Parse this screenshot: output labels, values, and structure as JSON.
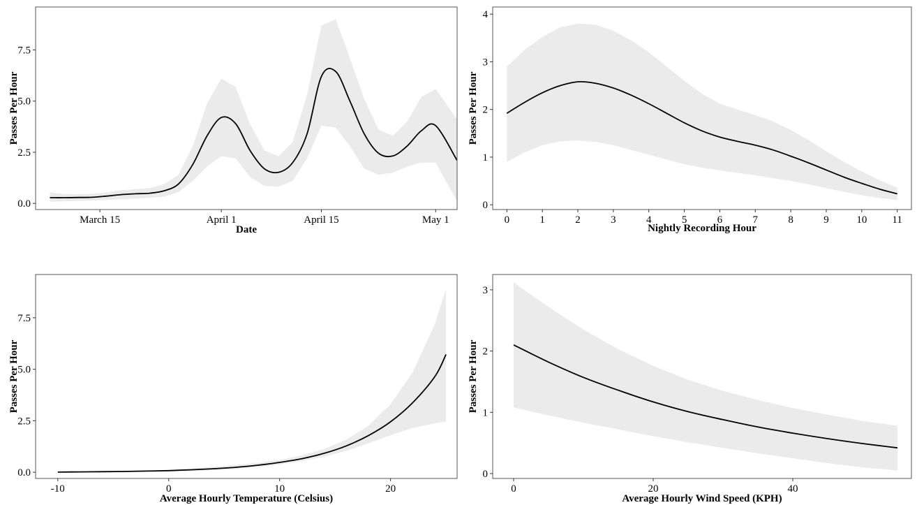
{
  "chart_data": [
    {
      "type": "line",
      "title": "",
      "xlabel": "Date",
      "ylabel": "Passes Per Hour",
      "x_axis_type": "date",
      "xlim": [
        "2017-03-06",
        "2017-05-04"
      ],
      "ylim": [
        -0.3,
        9.6
      ],
      "xticks": [
        {
          "value": "2017-03-15",
          "label": "March 15"
        },
        {
          "value": "2017-04-01",
          "label": "April 1"
        },
        {
          "value": "2017-04-15",
          "label": "April 15"
        },
        {
          "value": "2017-05-01",
          "label": "May 1"
        }
      ],
      "yticks": [
        {
          "value": 0,
          "label": "0.0"
        },
        {
          "value": 2.5,
          "label": "2.5"
        },
        {
          "value": 5,
          "label": "5.0"
        },
        {
          "value": 7.5,
          "label": "7.5"
        }
      ],
      "grid": false,
      "series": [
        {
          "x": [
            "2017-03-08",
            "2017-03-10",
            "2017-03-12",
            "2017-03-14",
            "2017-03-16",
            "2017-03-18",
            "2017-03-20",
            "2017-03-22",
            "2017-03-24",
            "2017-03-26",
            "2017-03-28",
            "2017-03-30",
            "2017-04-01",
            "2017-04-03",
            "2017-04-05",
            "2017-04-07",
            "2017-04-09",
            "2017-04-11",
            "2017-04-13",
            "2017-04-15",
            "2017-04-17",
            "2017-04-19",
            "2017-04-21",
            "2017-04-23",
            "2017-04-25",
            "2017-04-27",
            "2017-04-29",
            "2017-05-01",
            "2017-05-04"
          ],
          "y": [
            0.28,
            0.28,
            0.29,
            0.3,
            0.36,
            0.43,
            0.47,
            0.5,
            0.62,
            0.95,
            1.9,
            3.3,
            4.2,
            3.9,
            2.6,
            1.7,
            1.52,
            2.0,
            3.4,
            6.2,
            6.45,
            5.0,
            3.4,
            2.45,
            2.32,
            2.8,
            3.55,
            3.8,
            2.1
          ],
          "lower": [
            0.08,
            0.1,
            0.12,
            0.14,
            0.17,
            0.2,
            0.24,
            0.27,
            0.33,
            0.55,
            1.1,
            1.8,
            2.3,
            2.2,
            1.3,
            0.85,
            0.82,
            1.1,
            2.2,
            3.8,
            3.7,
            2.8,
            1.7,
            1.4,
            1.5,
            1.8,
            2.0,
            2.0,
            0.1
          ],
          "upper": [
            0.55,
            0.46,
            0.45,
            0.47,
            0.55,
            0.65,
            0.7,
            0.75,
            0.95,
            1.4,
            2.8,
            4.9,
            6.1,
            5.7,
            3.9,
            2.6,
            2.3,
            3.0,
            5.3,
            8.7,
            9.0,
            7.1,
            5.1,
            3.6,
            3.3,
            4.0,
            5.2,
            5.6,
            4.1
          ]
        }
      ]
    },
    {
      "type": "line",
      "title": "",
      "xlabel": "Nightly Recording Hour",
      "ylabel": "Passes Per Hour",
      "xlim": [
        -0.4,
        11.4
      ],
      "ylim": [
        -0.1,
        4.15
      ],
      "xticks": [
        {
          "value": 0,
          "label": "0"
        },
        {
          "value": 1,
          "label": "1"
        },
        {
          "value": 2,
          "label": "2"
        },
        {
          "value": 3,
          "label": "3"
        },
        {
          "value": 4,
          "label": "4"
        },
        {
          "value": 5,
          "label": "5"
        },
        {
          "value": 6,
          "label": "6"
        },
        {
          "value": 7,
          "label": "7"
        },
        {
          "value": 8,
          "label": "8"
        },
        {
          "value": 9,
          "label": "9"
        },
        {
          "value": 10,
          "label": "10"
        },
        {
          "value": 11,
          "label": "11"
        }
      ],
      "yticks": [
        {
          "value": 0,
          "label": "0"
        },
        {
          "value": 1,
          "label": "1"
        },
        {
          "value": 2,
          "label": "2"
        },
        {
          "value": 3,
          "label": "3"
        },
        {
          "value": 4,
          "label": "4"
        }
      ],
      "grid": false,
      "series": [
        {
          "x": [
            0,
            0.5,
            1,
            1.5,
            2,
            2.5,
            3,
            3.5,
            4,
            4.5,
            5,
            5.5,
            6,
            6.5,
            7,
            7.5,
            8,
            8.5,
            9,
            9.5,
            10,
            10.5,
            11
          ],
          "y": [
            1.92,
            2.15,
            2.35,
            2.5,
            2.58,
            2.55,
            2.45,
            2.3,
            2.12,
            1.92,
            1.72,
            1.55,
            1.42,
            1.33,
            1.25,
            1.15,
            1.02,
            0.88,
            0.73,
            0.58,
            0.45,
            0.33,
            0.23
          ],
          "lower": [
            0.9,
            1.1,
            1.25,
            1.33,
            1.35,
            1.32,
            1.25,
            1.15,
            1.05,
            0.95,
            0.85,
            0.78,
            0.72,
            0.67,
            0.62,
            0.56,
            0.5,
            0.43,
            0.35,
            0.27,
            0.2,
            0.14,
            0.1
          ],
          "upper": [
            2.9,
            3.25,
            3.52,
            3.72,
            3.8,
            3.78,
            3.65,
            3.45,
            3.2,
            2.9,
            2.6,
            2.33,
            2.12,
            2.0,
            1.88,
            1.75,
            1.57,
            1.36,
            1.12,
            0.9,
            0.7,
            0.52,
            0.36
          ]
        }
      ]
    },
    {
      "type": "line",
      "title": "",
      "xlabel": "Average Hourly Temperature (Celsius)",
      "ylabel": "Passes Per Hour",
      "xlim": [
        -12,
        26
      ],
      "ylim": [
        -0.3,
        9.6
      ],
      "xticks": [
        {
          "value": -10,
          "label": "-10"
        },
        {
          "value": 0,
          "label": "0"
        },
        {
          "value": 10,
          "label": "10"
        },
        {
          "value": 20,
          "label": "20"
        }
      ],
      "yticks": [
        {
          "value": 0,
          "label": "0.0"
        },
        {
          "value": 2.5,
          "label": "2.5"
        },
        {
          "value": 5,
          "label": "5.0"
        },
        {
          "value": 7.5,
          "label": "7.5"
        }
      ],
      "grid": false,
      "series": [
        {
          "x": [
            -10,
            -8,
            -6,
            -4,
            -2,
            0,
            2,
            4,
            6,
            8,
            10,
            12,
            14,
            16,
            18,
            20,
            22,
            24,
            25
          ],
          "y": [
            0.01,
            0.02,
            0.03,
            0.04,
            0.06,
            0.08,
            0.12,
            0.17,
            0.24,
            0.34,
            0.48,
            0.66,
            0.92,
            1.28,
            1.78,
            2.45,
            3.38,
            4.65,
            5.72
          ],
          "lower": [
            0.0,
            0.0,
            0.01,
            0.01,
            0.02,
            0.04,
            0.06,
            0.1,
            0.16,
            0.25,
            0.38,
            0.54,
            0.76,
            1.04,
            1.4,
            1.8,
            2.15,
            2.38,
            2.45
          ],
          "upper": [
            0.03,
            0.04,
            0.05,
            0.07,
            0.09,
            0.12,
            0.18,
            0.26,
            0.35,
            0.46,
            0.6,
            0.82,
            1.13,
            1.58,
            2.25,
            3.3,
            4.85,
            7.2,
            8.9
          ]
        }
      ]
    },
    {
      "type": "line",
      "title": "",
      "xlabel": "Average Hourly Wind Speed (KPH)",
      "ylabel": "Passes Per Hour",
      "xlim": [
        -3,
        57
      ],
      "ylim": [
        -0.08,
        3.25
      ],
      "xticks": [
        {
          "value": 0,
          "label": "0"
        },
        {
          "value": 20,
          "label": "20"
        },
        {
          "value": 40,
          "label": "40"
        }
      ],
      "yticks": [
        {
          "value": 0,
          "label": "0"
        },
        {
          "value": 1,
          "label": "1"
        },
        {
          "value": 2,
          "label": "2"
        },
        {
          "value": 3,
          "label": "3"
        }
      ],
      "grid": false,
      "series": [
        {
          "x": [
            0,
            5,
            10,
            15,
            20,
            25,
            30,
            35,
            40,
            45,
            50,
            55
          ],
          "y": [
            2.1,
            1.82,
            1.57,
            1.36,
            1.17,
            1.01,
            0.88,
            0.76,
            0.66,
            0.57,
            0.49,
            0.42
          ],
          "lower": [
            1.08,
            0.95,
            0.83,
            0.72,
            0.61,
            0.51,
            0.42,
            0.33,
            0.25,
            0.17,
            0.1,
            0.05
          ],
          "upper": [
            3.12,
            2.72,
            2.35,
            2.03,
            1.76,
            1.53,
            1.35,
            1.2,
            1.07,
            0.96,
            0.86,
            0.78
          ]
        }
      ]
    }
  ]
}
